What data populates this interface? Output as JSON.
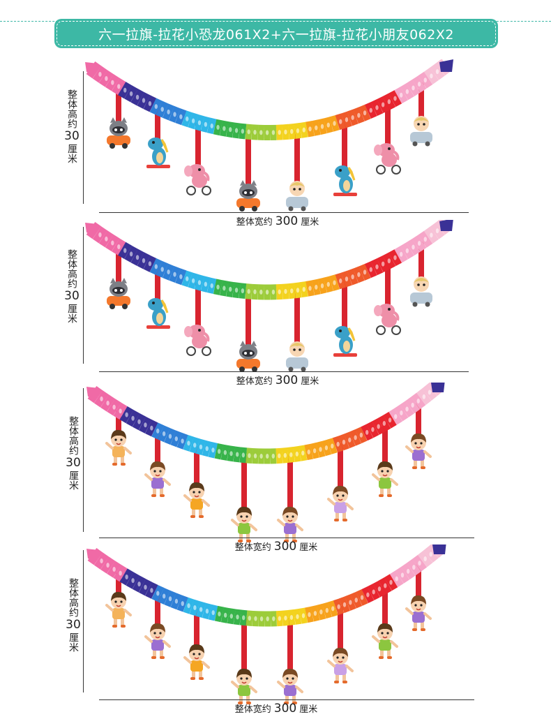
{
  "header": {
    "title": "六一拉旗-拉花小恐龙061X2+六一拉旗-拉花小朋友062X2"
  },
  "panels": [
    {
      "height_label": "整体高约",
      "height_value": "30",
      "height_unit": "厘米",
      "width_label": "整体宽约",
      "width_value": "300",
      "width_unit": "厘米",
      "character_set": "animals"
    },
    {
      "height_label": "整体高约",
      "height_value": "30",
      "height_unit": "厘米",
      "width_label": "整体宽约",
      "width_value": "300",
      "width_unit": "厘米",
      "character_set": "animals"
    },
    {
      "height_label": "整体高约",
      "height_value": "30",
      "height_unit": "厘米",
      "width_label": "整体宽约",
      "width_value": "300",
      "width_unit": "厘米",
      "character_set": "kids"
    },
    {
      "height_label": "整体高约",
      "height_value": "30",
      "height_unit": "厘米",
      "width_label": "整体宽约",
      "width_value": "300",
      "width_unit": "厘米",
      "character_set": "kids"
    }
  ],
  "colors": {
    "accent": "#3db8a5",
    "ribbon": "#d8242f",
    "rainbow": [
      "#f06aa6",
      "#3a3196",
      "#2f7fd6",
      "#2fb6e8",
      "#37b34a",
      "#9ccc3a",
      "#f3d21e",
      "#f7a21b",
      "#ef5a2a",
      "#e8252f",
      "#f6a5c8",
      "#f7c1d6"
    ]
  },
  "icons": {
    "animals": [
      "raccoon-car-icon",
      "dinosaur-skateboard-icon",
      "elephant-bike-icon",
      "raccoon-car-icon",
      "baby-car-icon",
      "dinosaur-skateboard-icon",
      "elephant-bike-icon",
      "baby-car-icon"
    ],
    "kids": [
      "boy-waving-icon",
      "girl-purple-icon",
      "boy-jumping-icon",
      "boy-green-icon",
      "girl-purple-icon",
      "girl-dancing-icon",
      "boy-green-icon",
      "girl-purple-icon"
    ]
  }
}
